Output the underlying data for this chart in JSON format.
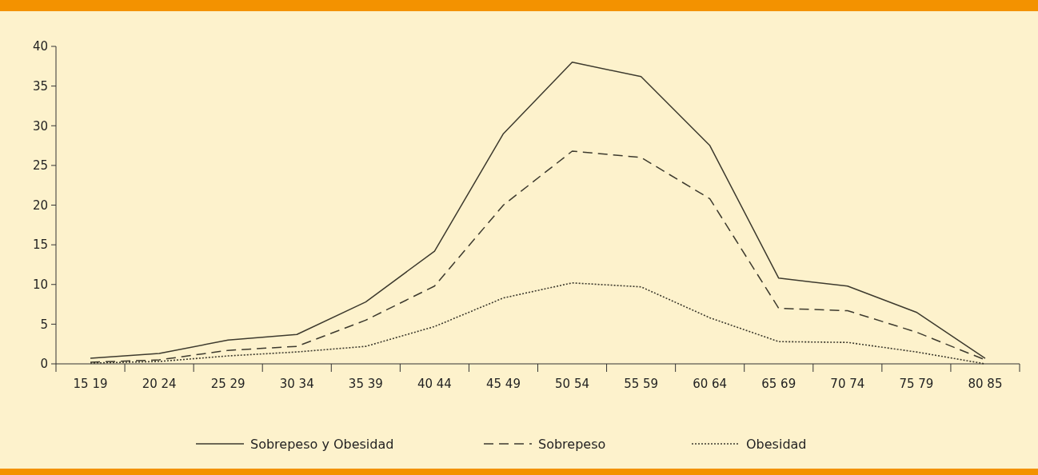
{
  "chart_data": {
    "type": "line",
    "categories": [
      "15 19",
      "20 24",
      "25 29",
      "30 34",
      "35 39",
      "40 44",
      "45 49",
      "50 54",
      "55 59",
      "60 64",
      "65 69",
      "70 74",
      "75 79",
      "80 85"
    ],
    "ylim": [
      0,
      40
    ],
    "yticks": [
      0,
      5,
      10,
      15,
      20,
      25,
      30,
      35,
      40
    ],
    "grid": false,
    "legend": "bottom",
    "series": [
      {
        "name": "Sobrepeso y Obesidad",
        "color": "#3d3a2e",
        "line_style": "solid",
        "values": [
          0.7,
          1.3,
          3,
          3.7,
          7.8,
          14.2,
          29,
          38,
          36.2,
          27.5,
          10.8,
          9.8,
          6.5,
          0.7
        ]
      },
      {
        "name": "Sobrepeso",
        "color": "#3d3a2e",
        "line_style": "dashed",
        "values": [
          0.2,
          0.5,
          1.7,
          2.2,
          5.5,
          9.8,
          20,
          26.8,
          26,
          20.8,
          7,
          6.7,
          4,
          0.5
        ]
      },
      {
        "name": "Obesidad",
        "color": "#3d3a2e",
        "line_style": "dotted",
        "values": [
          0.1,
          0.3,
          1,
          1.5,
          2.2,
          4.7,
          8.3,
          10.2,
          9.7,
          5.8,
          2.8,
          2.7,
          1.5,
          0
        ]
      }
    ]
  }
}
